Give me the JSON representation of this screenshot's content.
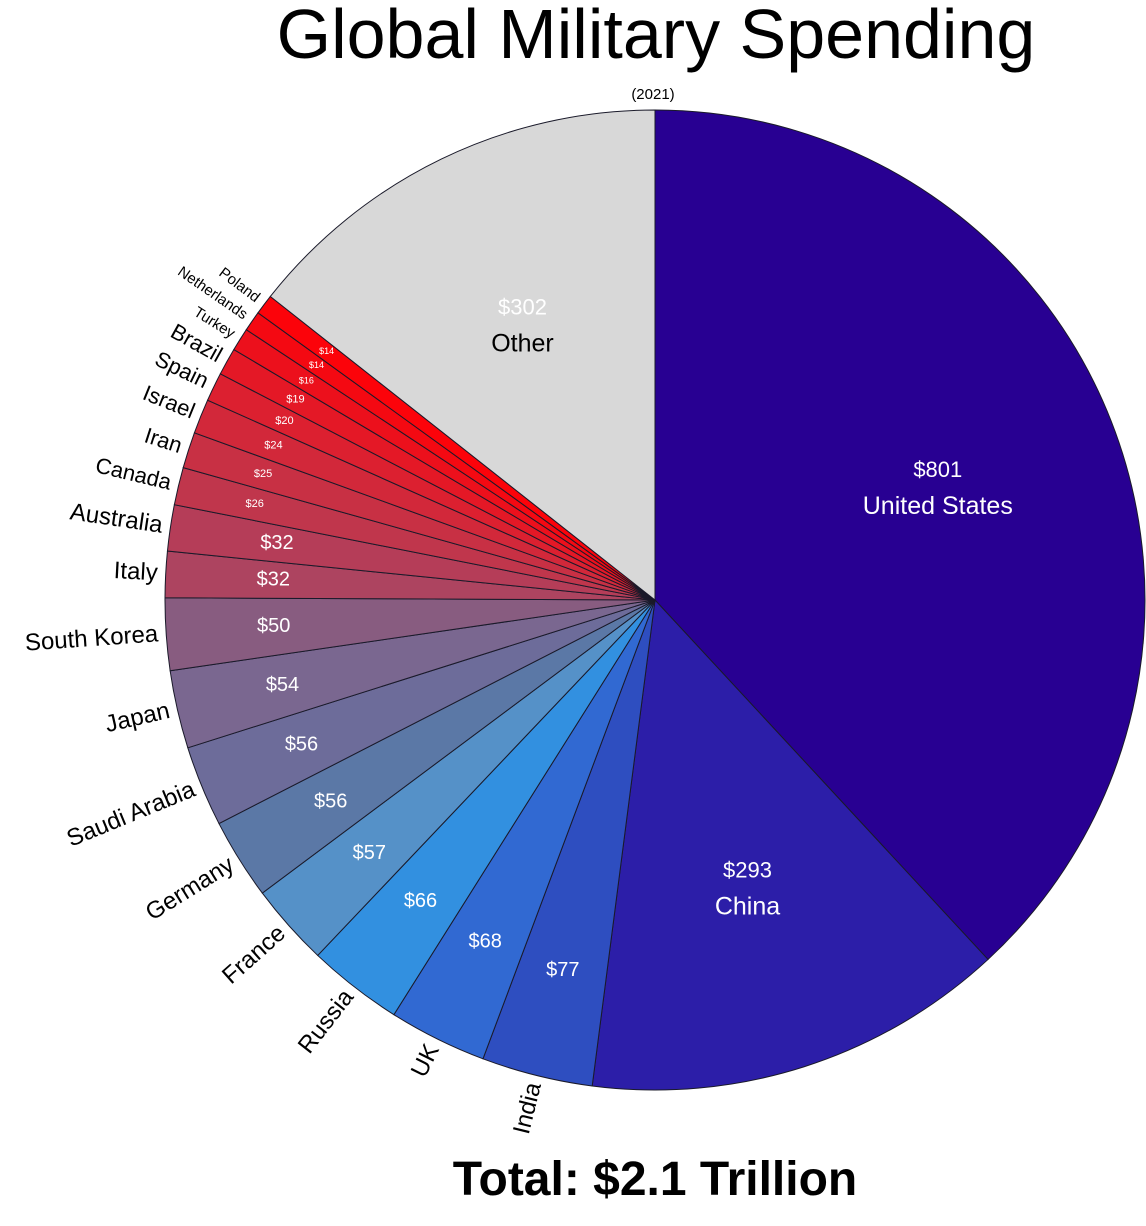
{
  "chart_data": {
    "type": "pie",
    "title": "Global Military Spending",
    "subtitle": "(2021)",
    "footer": "Total: $2.1 Trillion",
    "unit_note": "",
    "slices": [
      {
        "name": "United States",
        "value": 801,
        "label": "$801",
        "color": "#280092"
      },
      {
        "name": "China",
        "value": 293,
        "label": "$293",
        "color": "#2c1ea8"
      },
      {
        "name": "India",
        "value": 77,
        "label": "$77",
        "color": "#2e4ec0"
      },
      {
        "name": "UK",
        "value": 68,
        "label": "$68",
        "color": "#3169d2"
      },
      {
        "name": "Russia",
        "value": 66,
        "label": "$66",
        "color": "#3290e0"
      },
      {
        "name": "France",
        "value": 57,
        "label": "$57",
        "color": "#5591c8"
      },
      {
        "name": "Germany",
        "value": 56,
        "label": "$56",
        "color": "#5b78a6"
      },
      {
        "name": "Saudi Arabia",
        "value": 56,
        "label": "$56",
        "color": "#6d6c9a"
      },
      {
        "name": "Japan",
        "value": 54,
        "label": "$54",
        "color": "#7a6790"
      },
      {
        "name": "South Korea",
        "value": 50,
        "label": "$50",
        "color": "#885c80"
      },
      {
        "name": "Italy",
        "value": 32,
        "label": "$32",
        "color": "#ad4460"
      },
      {
        "name": "Australia",
        "value": 32,
        "label": "$32",
        "color": "#b53d58"
      },
      {
        "name": "Canada",
        "value": 26,
        "label": "$26",
        "color": "#c0364c"
      },
      {
        "name": "Iran",
        "value": 25,
        "label": "$25",
        "color": "#c83044"
      },
      {
        "name": "Israel",
        "value": 24,
        "label": "$24",
        "color": "#d2283a"
      },
      {
        "name": "Spain",
        "value": 20,
        "label": "$20",
        "color": "#dc2030"
      },
      {
        "name": "Brazil",
        "value": 19,
        "label": "$19",
        "color": "#e41826"
      },
      {
        "name": "Turkey",
        "value": 16,
        "label": "$16",
        "color": "#ec101c"
      },
      {
        "name": "Netherlands",
        "value": 14,
        "label": "$14",
        "color": "#f40912"
      },
      {
        "name": "Poland",
        "value": 14,
        "label": "$14",
        "color": "#fc030a"
      },
      {
        "name": "Other",
        "value": 302,
        "label": "$302",
        "color": "#d8d8d8"
      }
    ]
  }
}
